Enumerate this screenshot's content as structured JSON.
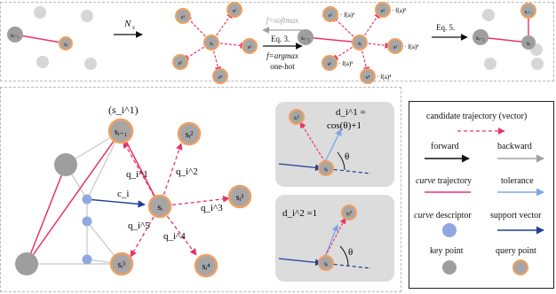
{
  "top_panel": {
    "step_n": {
      "base": "N",
      "sub": "s"
    },
    "step_softmax": "f=softmax",
    "step_eq3": "Eq. 3.",
    "step_argmax": "f=argmax",
    "step_onehot": "one-hot",
    "step_eq5": "Eq. 5.",
    "weights": [
      "· f(a)¹",
      "· f(a)²",
      "· f(a)³",
      "· f(a)⁴",
      "· f(a)⁵"
    ],
    "ref_color": "#cc2200"
  },
  "main_panel": {
    "label_s_i_1_top": "(s_i^1)",
    "vector_labels": [
      "q_i^1",
      "q_i^2",
      "q_i^3",
      "q_i^4",
      "q_i^5"
    ],
    "descriptor_label": "c_i"
  },
  "inset_1": {
    "formula_line1": "d_i^1 =",
    "formula_line2": "cos(θ)+1",
    "theta": "θ"
  },
  "inset_2": {
    "formula": "d_i^2 =1",
    "theta": "θ"
  },
  "legend": {
    "candidate": "candidate trajectory (vector)",
    "forward": "forward",
    "backward": "backward",
    "curve_traj_italic": "curve",
    "curve_traj_rest": " trajectory",
    "tolerance": "tolerance",
    "curve_desc_italic": "curve",
    "curve_desc_rest": " descriptor",
    "support": "support vector",
    "key_point": "key point",
    "query_point": "query point"
  },
  "colors": {
    "query_fill": "#a6a6a6",
    "query_ring": "#f0a060",
    "key_point": "#8fa8e0",
    "trajectory": "#e8336a",
    "candidate": "#e8336a",
    "forward": "#111111",
    "backward": "#a0a0a0",
    "support": "#1f3f9a",
    "tolerance": "#7aa6e6",
    "grey_point": "#d6d6d6",
    "dark_grey_point": "#9e9e9e",
    "inset_bg": "#dcdcdc"
  }
}
